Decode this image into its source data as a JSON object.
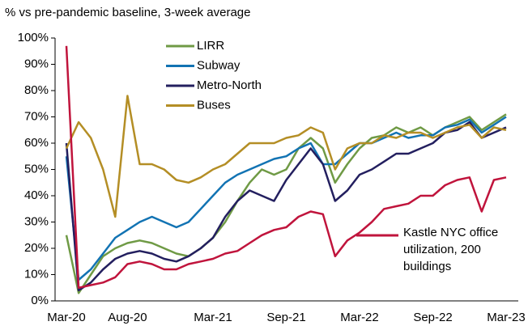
{
  "chart_data": {
    "type": "line",
    "subtitle": "% vs pre-pandemic baseline, 3-week average",
    "categories": [
      "Mar-20",
      null,
      null,
      null,
      null,
      "Aug-20",
      null,
      null,
      null,
      null,
      null,
      null,
      "Mar-21",
      null,
      null,
      null,
      null,
      null,
      "Sep-21",
      null,
      null,
      null,
      null,
      null,
      "Mar-22",
      null,
      null,
      null,
      null,
      null,
      "Sep-22",
      null,
      null,
      null,
      null,
      null,
      "Mar-23"
    ],
    "series": [
      {
        "name": "LIRR",
        "color": "#6f9a45",
        "values": [
          25,
          3,
          10,
          17,
          20,
          22,
          23,
          22,
          20,
          18,
          17,
          20,
          24,
          30,
          38,
          45,
          50,
          48,
          50,
          58,
          62,
          58,
          45,
          52,
          58,
          62,
          63,
          66,
          64,
          66,
          63,
          66,
          68,
          70,
          65,
          68,
          71
        ]
      },
      {
        "name": "Subway",
        "color": "#1273b3",
        "values": [
          55,
          8,
          12,
          18,
          24,
          27,
          30,
          32,
          30,
          28,
          30,
          35,
          40,
          45,
          48,
          50,
          52,
          54,
          55,
          58,
          60,
          52,
          52,
          56,
          60,
          60,
          62,
          64,
          62,
          63,
          63,
          66,
          67,
          69,
          64,
          67,
          70
        ]
      },
      {
        "name": "Metro-North",
        "color": "#231f5f",
        "values": [
          60,
          4,
          7,
          12,
          16,
          18,
          19,
          18,
          16,
          15,
          17,
          20,
          24,
          32,
          38,
          42,
          40,
          38,
          46,
          52,
          58,
          52,
          38,
          42,
          48,
          50,
          53,
          56,
          56,
          58,
          60,
          64,
          65,
          68,
          62,
          64,
          66
        ]
      },
      {
        "name": "Buses",
        "color": "#b48e25",
        "values": [
          58,
          68,
          62,
          50,
          32,
          78,
          52,
          52,
          50,
          46,
          45,
          47,
          50,
          52,
          56,
          60,
          60,
          60,
          62,
          63,
          66,
          64,
          50,
          58,
          60,
          60,
          63,
          62,
          64,
          64,
          62,
          64,
          66,
          67,
          62,
          66,
          65
        ]
      },
      {
        "name": "Kastle NYC office utilization, 200 buildings",
        "color": "#c0143c",
        "values": [
          97,
          5,
          6,
          7,
          9,
          14,
          15,
          14,
          12,
          12,
          14,
          15,
          16,
          18,
          19,
          22,
          25,
          27,
          28,
          32,
          34,
          33,
          17,
          23,
          26,
          30,
          35,
          36,
          37,
          40,
          40,
          44,
          46,
          47,
          34,
          46,
          47
        ]
      }
    ],
    "ylim": [
      0,
      100
    ],
    "yticks": [
      {
        "value": 0,
        "label": "0%"
      },
      {
        "value": 10,
        "label": "10%"
      },
      {
        "value": 20,
        "label": "20%"
      },
      {
        "value": 30,
        "label": "30%"
      },
      {
        "value": 40,
        "label": "40%"
      },
      {
        "value": 50,
        "label": "50%"
      },
      {
        "value": 60,
        "label": "60%"
      },
      {
        "value": 70,
        "label": "70%"
      },
      {
        "value": 80,
        "label": "80%"
      },
      {
        "value": 90,
        "label": "90%"
      },
      {
        "value": 100,
        "label": "100%"
      }
    ]
  }
}
